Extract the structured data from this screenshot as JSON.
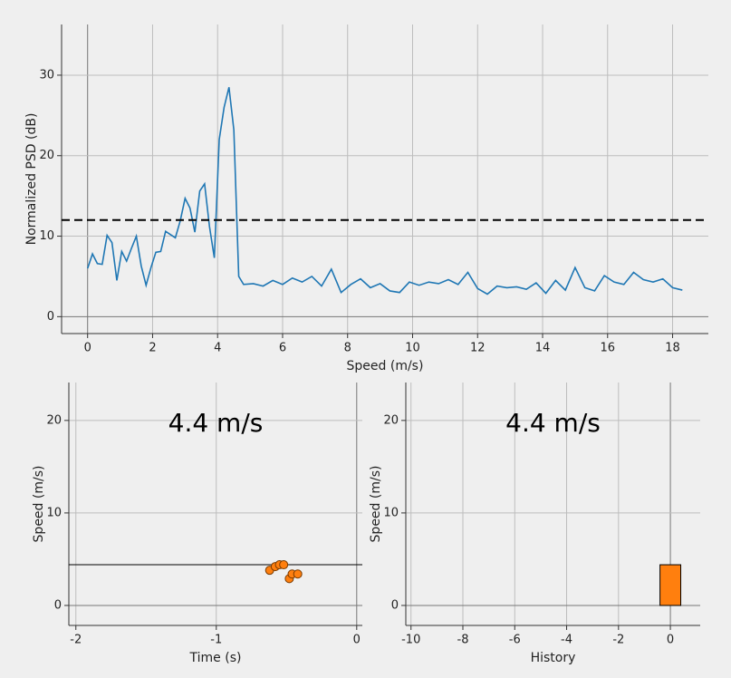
{
  "chart_data": [
    {
      "type": "line",
      "xlabel": "Speed (m/s)",
      "ylabel": "Normalized PSD (dB)",
      "x": [
        0,
        0.15,
        0.3,
        0.45,
        0.6,
        0.75,
        0.9,
        1.05,
        1.2,
        1.35,
        1.5,
        1.65,
        1.8,
        1.95,
        2.1,
        2.25,
        2.4,
        2.55,
        2.7,
        2.85,
        3,
        3.15,
        3.3,
        3.45,
        3.6,
        3.75,
        3.9,
        4.05,
        4.2,
        4.35,
        4.5,
        4.65,
        4.8,
        5.1,
        5.4,
        5.7,
        6,
        6.3,
        6.6,
        6.9,
        7.2,
        7.5,
        7.8,
        8.1,
        8.4,
        8.7,
        9,
        9.3,
        9.6,
        9.9,
        10.2,
        10.5,
        10.8,
        11.1,
        11.4,
        11.7,
        12,
        12.3,
        12.6,
        12.9,
        13.2,
        13.5,
        13.8,
        14.1,
        14.4,
        14.7,
        15,
        15.3,
        15.6,
        15.9,
        16.2,
        16.5,
        16.8,
        17.1,
        17.4,
        17.7,
        18,
        18.3
      ],
      "series": [
        {
          "color": "#1f77b4",
          "values": [
            6,
            7.8,
            6.6,
            6.5,
            10.1,
            9.2,
            4.5,
            8.1,
            6.9,
            8.5,
            10,
            6.3,
            3.9,
            6.1,
            8,
            8.1,
            10.6,
            10.2,
            9.8,
            11.9,
            14.7,
            13.5,
            10.5,
            15.6,
            16.5,
            11.2,
            7.3,
            22,
            26,
            28.5,
            23.2,
            5,
            4,
            4.1,
            3.8,
            4.5,
            4.0,
            4.8,
            4.3,
            5.0,
            3.8,
            5.9,
            3.0,
            4.0,
            4.7,
            3.6,
            4.1,
            3.2,
            3.0,
            4.3,
            3.9,
            4.3,
            4.1,
            4.6,
            4.0,
            5.5,
            3.5,
            2.8,
            3.8,
            3.6,
            3.7,
            3.4,
            4.2,
            2.9,
            4.5,
            3.3,
            6.1,
            3.6,
            3.2,
            5.1,
            4.3,
            4.0,
            5.5,
            4.6,
            4.3,
            4.7,
            3.6,
            3.3
          ]
        }
      ],
      "threshold": 12,
      "xlim": [
        -0.8,
        19.1
      ],
      "ylim": [
        -2.1,
        36.3
      ],
      "xticks": [
        0,
        2,
        4,
        6,
        8,
        10,
        12,
        14,
        16,
        18
      ],
      "yticks": [
        0,
        10,
        20,
        30
      ],
      "grid": true
    },
    {
      "type": "scatter",
      "title": "4.4 m/s",
      "xlabel": "Time (s)",
      "ylabel": "Speed (m/s)",
      "x": [
        -0.62,
        -0.58,
        -0.55,
        -0.52,
        -0.48,
        -0.46,
        -0.42
      ],
      "series": [
        {
          "color": "#ff7f0e",
          "values": [
            3.8,
            4.2,
            4.4,
            4.4,
            2.9,
            3.4,
            3.4
          ]
        }
      ],
      "hline": 4.4,
      "xlim": [
        -2.05,
        0.04
      ],
      "ylim": [
        -2.16,
        24.1
      ],
      "xticks": [
        -2,
        -1,
        0
      ],
      "yticks": [
        0,
        10,
        20
      ],
      "grid": true
    },
    {
      "type": "bar",
      "title": "4.4 m/s",
      "xlabel": "History",
      "ylabel": "Speed (m/s)",
      "x": [
        -10,
        -9,
        -8,
        -7,
        -6,
        -5,
        -4,
        -3,
        -2,
        -1,
        0
      ],
      "series": [
        {
          "color": "#ff7f0e",
          "values": [
            0,
            0,
            0,
            0,
            0,
            0,
            0,
            0,
            0,
            0,
            4.4
          ]
        }
      ],
      "xlim": [
        -10.2,
        1.15
      ],
      "ylim": [
        -2.16,
        24.1
      ],
      "xticks": [
        -10,
        -8,
        -6,
        -4,
        -2,
        0
      ],
      "yticks": [
        0,
        10,
        20
      ],
      "grid": true
    }
  ]
}
